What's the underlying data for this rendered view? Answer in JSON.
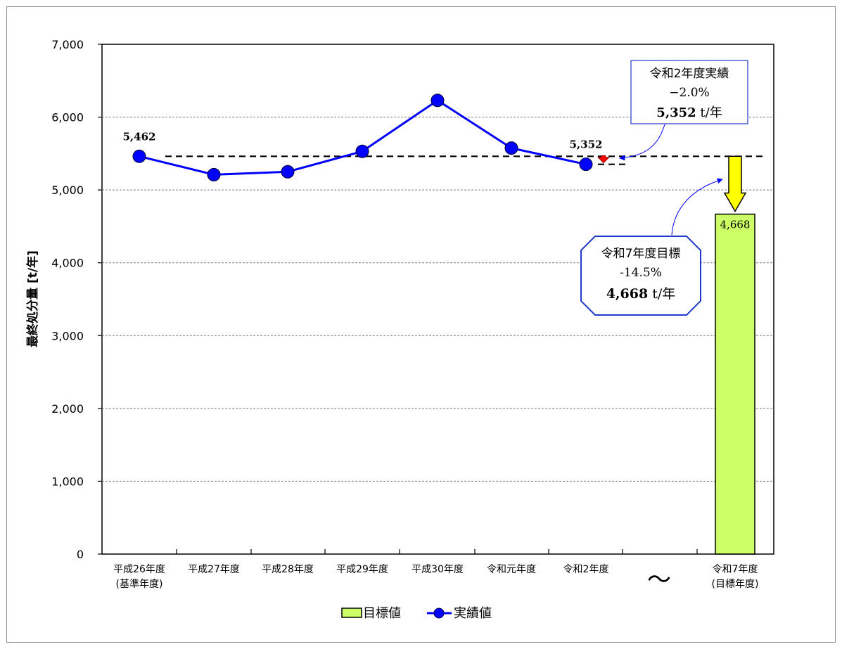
{
  "chart_data": {
    "type": "line",
    "ylabel": "最終処分量 [t/年]",
    "ylim": [
      0,
      7000
    ],
    "yticks": [
      "0",
      "1,000",
      "2,000",
      "3,000",
      "4,000",
      "5,000",
      "6,000",
      "7,000"
    ],
    "grid": "horizontal-dashed",
    "categories": [
      [
        "平成26年度",
        "(基準年度)"
      ],
      [
        "平成27年度"
      ],
      [
        "平成28年度"
      ],
      [
        "平成29年度"
      ],
      [
        "平成30年度"
      ],
      [
        "令和元年度"
      ],
      [
        "令和2年度"
      ],
      [
        "令和7年度",
        "(目標年度)"
      ]
    ],
    "axis_break_symbol": "〜",
    "series": [
      {
        "name": "実績値",
        "type": "line",
        "color": "#0000ff",
        "marker_color": "#0000ff",
        "values": [
          5462,
          5210,
          5250,
          5530,
          6230,
          5575,
          5352,
          null
        ]
      },
      {
        "name": "目標値",
        "type": "bar",
        "color": "#ccff66",
        "values": [
          null,
          null,
          null,
          null,
          null,
          null,
          null,
          4668
        ]
      }
    ],
    "data_labels": [
      {
        "series": "実績値",
        "index": 0,
        "text": "5,462"
      },
      {
        "series": "実績値",
        "index": 6,
        "text": "5,352"
      },
      {
        "series": "目標値",
        "index": 7,
        "text": "4,668"
      }
    ],
    "reference_line": {
      "value": 5462,
      "style": "dashed",
      "color": "#000000"
    },
    "legend": {
      "placement": "bottom",
      "entries": [
        "目標値",
        "実績値"
      ]
    }
  },
  "annotations": {
    "actual_callout": {
      "line1": "令和2年度実績",
      "line2": "−2.0%",
      "value": "5,352",
      "unit": " t/年"
    },
    "target_callout": {
      "line1": "令和7年度目標",
      "line2": "-14.5%",
      "value": "4,668",
      "unit": " t/年"
    }
  },
  "colors": {
    "line": "#0000ff",
    "bar": "#ccff66",
    "arrow_yellow": "#ffff00",
    "arrow_red": "#ff0000",
    "grid": "#808080"
  }
}
